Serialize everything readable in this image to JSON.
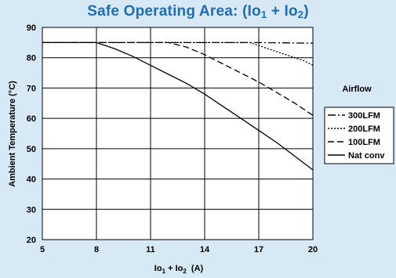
{
  "chart_data": {
    "type": "line",
    "title": {
      "main": "Safe Operating Area: (Io",
      "s1": "1",
      "mid": " + Io",
      "s2": "2",
      "end": ")"
    },
    "xlabel": {
      "a": "Io",
      "s1": "1",
      "b": " + Io",
      "s2": "2",
      "c": "  (A)"
    },
    "ylabel": "Ambient Temperature (°C)",
    "xlim": [
      5,
      20
    ],
    "ylim": [
      20,
      90
    ],
    "xticks": [
      "5",
      "8",
      "11",
      "14",
      "17",
      "20"
    ],
    "yticks": [
      "20",
      "30",
      "40",
      "50",
      "60",
      "70",
      "80",
      "90"
    ],
    "grid": true,
    "legend": {
      "title": "Airflow",
      "placement": "right"
    },
    "series": [
      {
        "name": "300LFM",
        "dash": "10,3,2,3",
        "x": [
          5,
          17,
          20
        ],
        "y": [
          85,
          85,
          84.8
        ]
      },
      {
        "name": "200LFM",
        "dash": "2,2",
        "x": [
          5,
          16.5,
          17,
          17.5,
          18,
          18.5,
          19,
          19.5,
          20
        ],
        "y": [
          85,
          85,
          84,
          83,
          82,
          81,
          80,
          79,
          77.5
        ]
      },
      {
        "name": "100LFM",
        "dash": "8,4",
        "x": [
          5,
          12,
          13,
          14,
          15,
          16,
          17,
          18,
          19,
          20
        ],
        "y": [
          85,
          85,
          83.5,
          81,
          78,
          75,
          72,
          68.5,
          65,
          61
        ]
      },
      {
        "name": "Nat conv",
        "dash": "",
        "x": [
          5,
          8,
          9,
          10,
          11,
          12,
          13,
          14,
          15,
          16,
          17,
          18,
          19,
          20
        ],
        "y": [
          85,
          85,
          83,
          80.5,
          77.5,
          74.5,
          71.5,
          68,
          64,
          60,
          56,
          52,
          47.5,
          43
        ]
      }
    ]
  }
}
